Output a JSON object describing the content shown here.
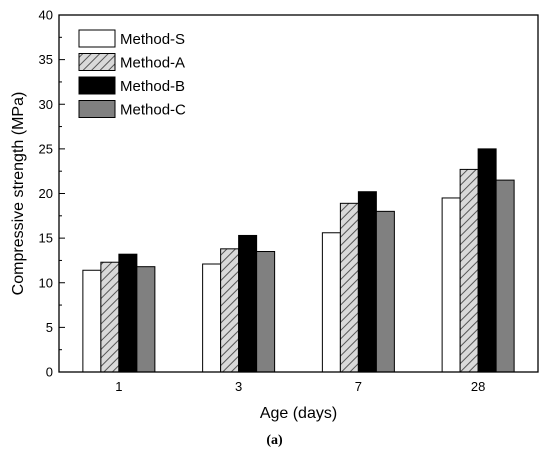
{
  "chart_data": {
    "type": "bar",
    "categories": [
      "1",
      "3",
      "7",
      "28"
    ],
    "series": [
      {
        "name": "Method-S",
        "values": [
          11.4,
          12.1,
          15.6,
          19.5
        ],
        "fill": "#ffffff",
        "pattern": "none"
      },
      {
        "name": "Method-A",
        "values": [
          12.3,
          13.8,
          18.9,
          22.7
        ],
        "fill": "#bfbfbf",
        "pattern": "hatch"
      },
      {
        "name": "Method-B",
        "values": [
          13.2,
          15.3,
          20.2,
          25.0
        ],
        "fill": "#000000",
        "pattern": "none"
      },
      {
        "name": "Method-C",
        "values": [
          11.8,
          13.5,
          18.0,
          21.5
        ],
        "fill": "#808080",
        "pattern": "none"
      }
    ],
    "xlabel": "Age (days)",
    "ylabel": "Compressive strength (MPa)",
    "ylim": [
      0,
      40
    ],
    "yticks": [
      "0",
      "5",
      "10",
      "15",
      "20",
      "25",
      "30",
      "35",
      "40"
    ],
    "grid": false,
    "legend_position": "top-left"
  },
  "caption": "(a)"
}
